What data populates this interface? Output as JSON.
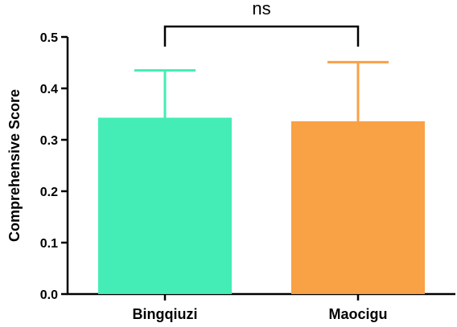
{
  "chart_data": {
    "type": "bar",
    "categories": [
      "Bingqiuzi",
      "Maocigu"
    ],
    "values": [
      0.343,
      0.336
    ],
    "error_upper": [
      0.435,
      0.451
    ],
    "colors": [
      "#44EDB5",
      "#F9A145"
    ],
    "ylabel": "Comprehensive Score",
    "xlabel": "",
    "ylim": [
      0,
      0.5
    ],
    "yticks": [
      "0.0",
      "0.1",
      "0.2",
      "0.3",
      "0.4",
      "0.5"
    ],
    "significance": {
      "label": "ns",
      "between": [
        "Bingqiuzi",
        "Maocigu"
      ]
    },
    "grid": false,
    "legend": "none"
  }
}
